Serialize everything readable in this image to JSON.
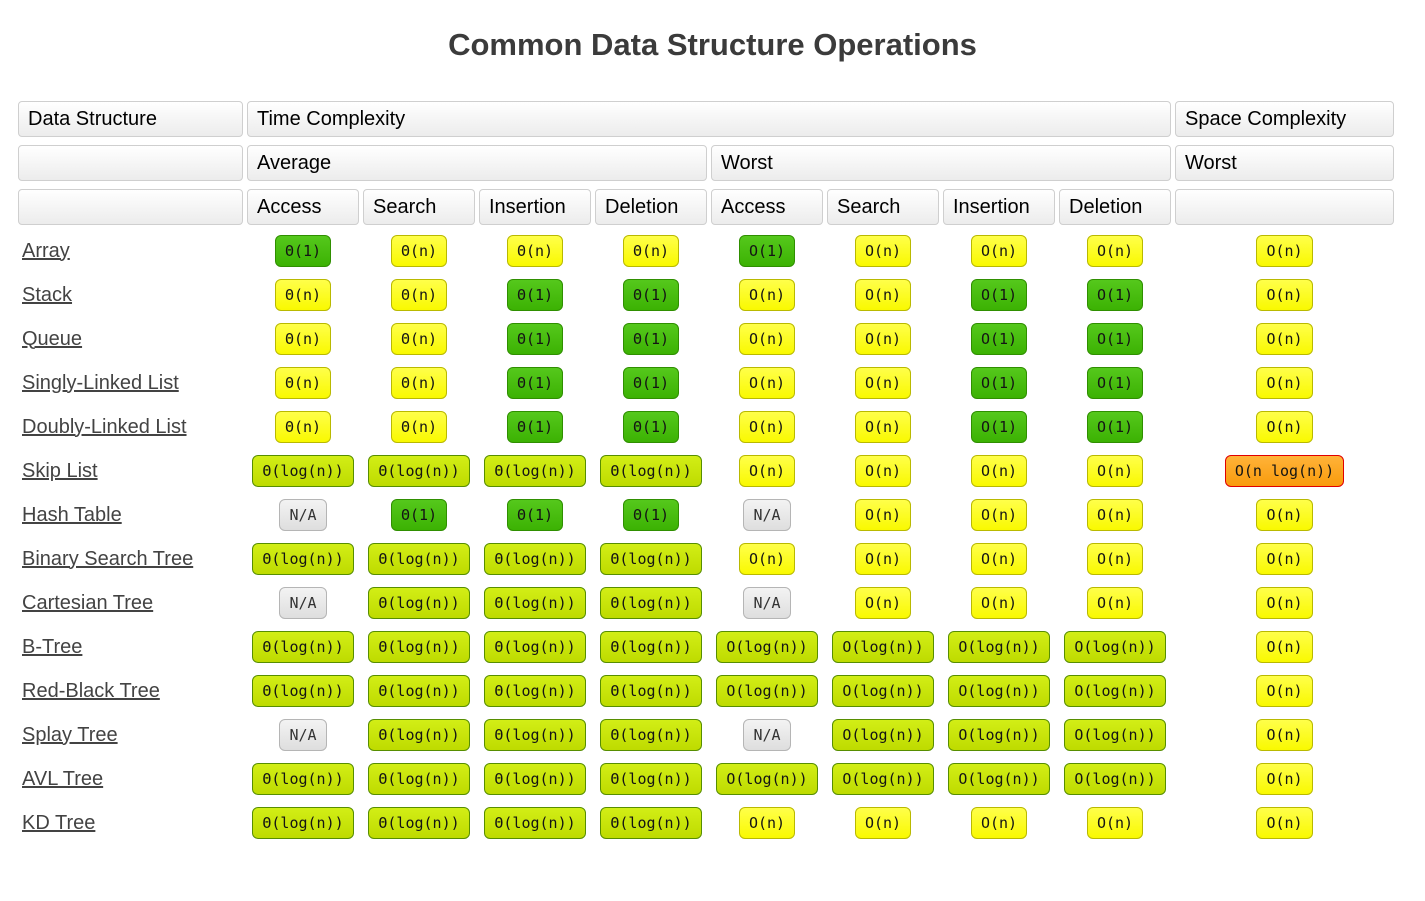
{
  "page": {
    "title": "Common Data Structure Operations"
  },
  "palette": {
    "green": "#46bd0a",
    "yellow": "#ffff00",
    "yellowgreen": "#c8e602",
    "orange": "#ffa41f",
    "orange_border": "#e00000",
    "gray": "#e9e9e9"
  },
  "table": {
    "headers": {
      "data_structure": "Data Structure",
      "time_complexity": "Time Complexity",
      "space_complexity": "Space Complexity",
      "average": "Average",
      "worst": "Worst",
      "space_worst": "Worst",
      "operations": [
        "Access",
        "Search",
        "Insertion",
        "Deletion"
      ]
    },
    "rows": [
      {
        "name": "Array",
        "average": [
          {
            "text": "Θ(1)",
            "color": "green"
          },
          {
            "text": "Θ(n)",
            "color": "yellow"
          },
          {
            "text": "Θ(n)",
            "color": "yellow"
          },
          {
            "text": "Θ(n)",
            "color": "yellow"
          }
        ],
        "worst": [
          {
            "text": "O(1)",
            "color": "green"
          },
          {
            "text": "O(n)",
            "color": "yellow"
          },
          {
            "text": "O(n)",
            "color": "yellow"
          },
          {
            "text": "O(n)",
            "color": "yellow"
          }
        ],
        "space": {
          "text": "O(n)",
          "color": "yellow"
        }
      },
      {
        "name": "Stack",
        "average": [
          {
            "text": "Θ(n)",
            "color": "yellow"
          },
          {
            "text": "Θ(n)",
            "color": "yellow"
          },
          {
            "text": "Θ(1)",
            "color": "green"
          },
          {
            "text": "Θ(1)",
            "color": "green"
          }
        ],
        "worst": [
          {
            "text": "O(n)",
            "color": "yellow"
          },
          {
            "text": "O(n)",
            "color": "yellow"
          },
          {
            "text": "O(1)",
            "color": "green"
          },
          {
            "text": "O(1)",
            "color": "green"
          }
        ],
        "space": {
          "text": "O(n)",
          "color": "yellow"
        }
      },
      {
        "name": "Queue",
        "average": [
          {
            "text": "Θ(n)",
            "color": "yellow"
          },
          {
            "text": "Θ(n)",
            "color": "yellow"
          },
          {
            "text": "Θ(1)",
            "color": "green"
          },
          {
            "text": "Θ(1)",
            "color": "green"
          }
        ],
        "worst": [
          {
            "text": "O(n)",
            "color": "yellow"
          },
          {
            "text": "O(n)",
            "color": "yellow"
          },
          {
            "text": "O(1)",
            "color": "green"
          },
          {
            "text": "O(1)",
            "color": "green"
          }
        ],
        "space": {
          "text": "O(n)",
          "color": "yellow"
        }
      },
      {
        "name": "Singly-Linked List",
        "average": [
          {
            "text": "Θ(n)",
            "color": "yellow"
          },
          {
            "text": "Θ(n)",
            "color": "yellow"
          },
          {
            "text": "Θ(1)",
            "color": "green"
          },
          {
            "text": "Θ(1)",
            "color": "green"
          }
        ],
        "worst": [
          {
            "text": "O(n)",
            "color": "yellow"
          },
          {
            "text": "O(n)",
            "color": "yellow"
          },
          {
            "text": "O(1)",
            "color": "green"
          },
          {
            "text": "O(1)",
            "color": "green"
          }
        ],
        "space": {
          "text": "O(n)",
          "color": "yellow"
        }
      },
      {
        "name": "Doubly-Linked List",
        "average": [
          {
            "text": "Θ(n)",
            "color": "yellow"
          },
          {
            "text": "Θ(n)",
            "color": "yellow"
          },
          {
            "text": "Θ(1)",
            "color": "green"
          },
          {
            "text": "Θ(1)",
            "color": "green"
          }
        ],
        "worst": [
          {
            "text": "O(n)",
            "color": "yellow"
          },
          {
            "text": "O(n)",
            "color": "yellow"
          },
          {
            "text": "O(1)",
            "color": "green"
          },
          {
            "text": "O(1)",
            "color": "green"
          }
        ],
        "space": {
          "text": "O(n)",
          "color": "yellow"
        }
      },
      {
        "name": "Skip List",
        "average": [
          {
            "text": "Θ(log(n))",
            "color": "yellowgreen"
          },
          {
            "text": "Θ(log(n))",
            "color": "yellowgreen"
          },
          {
            "text": "Θ(log(n))",
            "color": "yellowgreen"
          },
          {
            "text": "Θ(log(n))",
            "color": "yellowgreen"
          }
        ],
        "worst": [
          {
            "text": "O(n)",
            "color": "yellow"
          },
          {
            "text": "O(n)",
            "color": "yellow"
          },
          {
            "text": "O(n)",
            "color": "yellow"
          },
          {
            "text": "O(n)",
            "color": "yellow"
          }
        ],
        "space": {
          "text": "O(n log(n))",
          "color": "orange"
        }
      },
      {
        "name": "Hash Table",
        "average": [
          {
            "text": "N/A",
            "color": "gray"
          },
          {
            "text": "Θ(1)",
            "color": "green"
          },
          {
            "text": "Θ(1)",
            "color": "green"
          },
          {
            "text": "Θ(1)",
            "color": "green"
          }
        ],
        "worst": [
          {
            "text": "N/A",
            "color": "gray"
          },
          {
            "text": "O(n)",
            "color": "yellow"
          },
          {
            "text": "O(n)",
            "color": "yellow"
          },
          {
            "text": "O(n)",
            "color": "yellow"
          }
        ],
        "space": {
          "text": "O(n)",
          "color": "yellow"
        }
      },
      {
        "name": "Binary Search Tree",
        "average": [
          {
            "text": "Θ(log(n))",
            "color": "yellowgreen"
          },
          {
            "text": "Θ(log(n))",
            "color": "yellowgreen"
          },
          {
            "text": "Θ(log(n))",
            "color": "yellowgreen"
          },
          {
            "text": "Θ(log(n))",
            "color": "yellowgreen"
          }
        ],
        "worst": [
          {
            "text": "O(n)",
            "color": "yellow"
          },
          {
            "text": "O(n)",
            "color": "yellow"
          },
          {
            "text": "O(n)",
            "color": "yellow"
          },
          {
            "text": "O(n)",
            "color": "yellow"
          }
        ],
        "space": {
          "text": "O(n)",
          "color": "yellow"
        }
      },
      {
        "name": "Cartesian Tree",
        "average": [
          {
            "text": "N/A",
            "color": "gray"
          },
          {
            "text": "Θ(log(n))",
            "color": "yellowgreen"
          },
          {
            "text": "Θ(log(n))",
            "color": "yellowgreen"
          },
          {
            "text": "Θ(log(n))",
            "color": "yellowgreen"
          }
        ],
        "worst": [
          {
            "text": "N/A",
            "color": "gray"
          },
          {
            "text": "O(n)",
            "color": "yellow"
          },
          {
            "text": "O(n)",
            "color": "yellow"
          },
          {
            "text": "O(n)",
            "color": "yellow"
          }
        ],
        "space": {
          "text": "O(n)",
          "color": "yellow"
        }
      },
      {
        "name": "B-Tree",
        "average": [
          {
            "text": "Θ(log(n))",
            "color": "yellowgreen"
          },
          {
            "text": "Θ(log(n))",
            "color": "yellowgreen"
          },
          {
            "text": "Θ(log(n))",
            "color": "yellowgreen"
          },
          {
            "text": "Θ(log(n))",
            "color": "yellowgreen"
          }
        ],
        "worst": [
          {
            "text": "O(log(n))",
            "color": "yellowgreen"
          },
          {
            "text": "O(log(n))",
            "color": "yellowgreen"
          },
          {
            "text": "O(log(n))",
            "color": "yellowgreen"
          },
          {
            "text": "O(log(n))",
            "color": "yellowgreen"
          }
        ],
        "space": {
          "text": "O(n)",
          "color": "yellow"
        }
      },
      {
        "name": "Red-Black Tree",
        "average": [
          {
            "text": "Θ(log(n))",
            "color": "yellowgreen"
          },
          {
            "text": "Θ(log(n))",
            "color": "yellowgreen"
          },
          {
            "text": "Θ(log(n))",
            "color": "yellowgreen"
          },
          {
            "text": "Θ(log(n))",
            "color": "yellowgreen"
          }
        ],
        "worst": [
          {
            "text": "O(log(n))",
            "color": "yellowgreen"
          },
          {
            "text": "O(log(n))",
            "color": "yellowgreen"
          },
          {
            "text": "O(log(n))",
            "color": "yellowgreen"
          },
          {
            "text": "O(log(n))",
            "color": "yellowgreen"
          }
        ],
        "space": {
          "text": "O(n)",
          "color": "yellow"
        }
      },
      {
        "name": "Splay Tree",
        "average": [
          {
            "text": "N/A",
            "color": "gray"
          },
          {
            "text": "Θ(log(n))",
            "color": "yellowgreen"
          },
          {
            "text": "Θ(log(n))",
            "color": "yellowgreen"
          },
          {
            "text": "Θ(log(n))",
            "color": "yellowgreen"
          }
        ],
        "worst": [
          {
            "text": "N/A",
            "color": "gray"
          },
          {
            "text": "O(log(n))",
            "color": "yellowgreen"
          },
          {
            "text": "O(log(n))",
            "color": "yellowgreen"
          },
          {
            "text": "O(log(n))",
            "color": "yellowgreen"
          }
        ],
        "space": {
          "text": "O(n)",
          "color": "yellow"
        }
      },
      {
        "name": "AVL Tree",
        "average": [
          {
            "text": "Θ(log(n))",
            "color": "yellowgreen"
          },
          {
            "text": "Θ(log(n))",
            "color": "yellowgreen"
          },
          {
            "text": "Θ(log(n))",
            "color": "yellowgreen"
          },
          {
            "text": "Θ(log(n))",
            "color": "yellowgreen"
          }
        ],
        "worst": [
          {
            "text": "O(log(n))",
            "color": "yellowgreen"
          },
          {
            "text": "O(log(n))",
            "color": "yellowgreen"
          },
          {
            "text": "O(log(n))",
            "color": "yellowgreen"
          },
          {
            "text": "O(log(n))",
            "color": "yellowgreen"
          }
        ],
        "space": {
          "text": "O(n)",
          "color": "yellow"
        }
      },
      {
        "name": "KD Tree",
        "average": [
          {
            "text": "Θ(log(n))",
            "color": "yellowgreen"
          },
          {
            "text": "Θ(log(n))",
            "color": "yellowgreen"
          },
          {
            "text": "Θ(log(n))",
            "color": "yellowgreen"
          },
          {
            "text": "Θ(log(n))",
            "color": "yellowgreen"
          }
        ],
        "worst": [
          {
            "text": "O(n)",
            "color": "yellow"
          },
          {
            "text": "O(n)",
            "color": "yellow"
          },
          {
            "text": "O(n)",
            "color": "yellow"
          },
          {
            "text": "O(n)",
            "color": "yellow"
          }
        ],
        "space": {
          "text": "O(n)",
          "color": "yellow"
        }
      }
    ]
  }
}
